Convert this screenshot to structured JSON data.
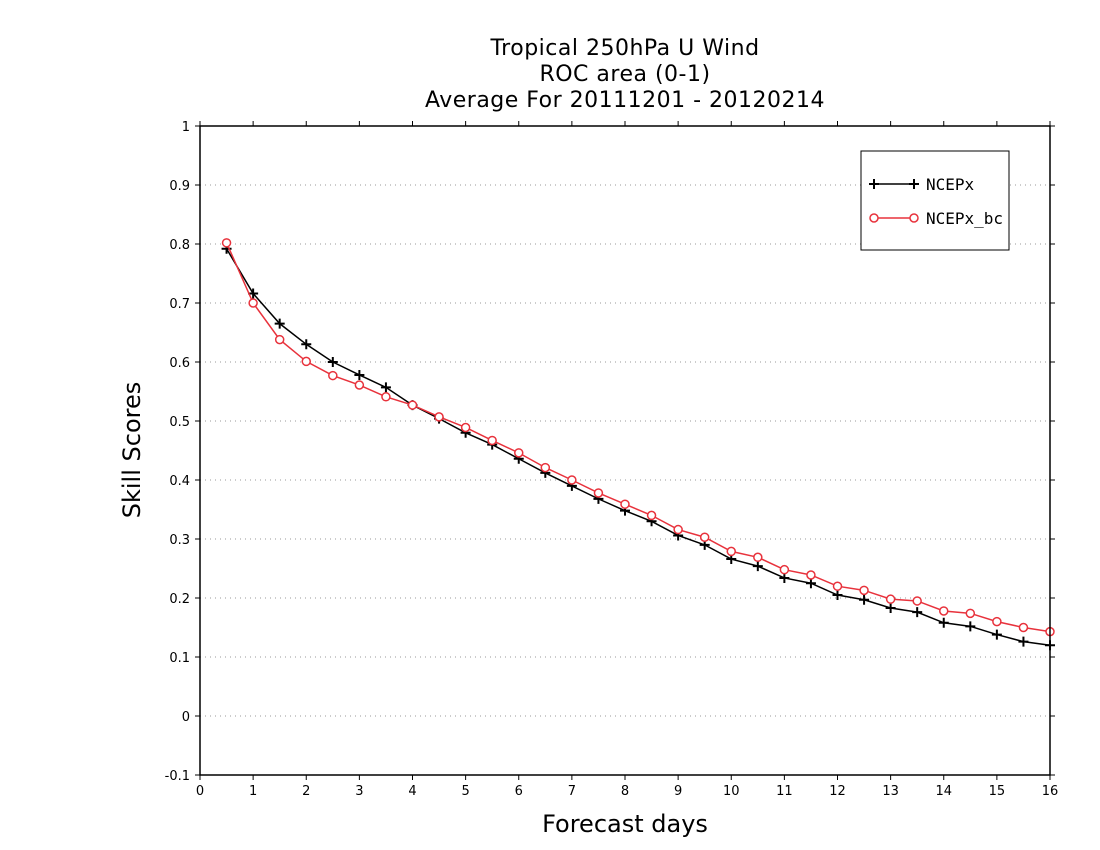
{
  "chart_data": {
    "type": "line",
    "title_lines": [
      "Tropical 250hPa U Wind",
      "ROC area (0-1)",
      "Average For 20111201 - 20120214"
    ],
    "xlabel": "Forecast days",
    "ylabel": "Skill Scores",
    "xlim": [
      0,
      16
    ],
    "ylim": [
      -0.1,
      1
    ],
    "x_ticks": [
      "0",
      "1",
      "2",
      "3",
      "4",
      "5",
      "6",
      "7",
      "8",
      "9",
      "10",
      "11",
      "12",
      "13",
      "14",
      "15",
      "16"
    ],
    "y_ticks": [
      "-0.1",
      "0",
      "0.1",
      "0.2",
      "0.3",
      "0.4",
      "0.5",
      "0.6",
      "0.7",
      "0.8",
      "0.9",
      "1"
    ],
    "grid": "horizontal dotted",
    "legend_position": "top-right",
    "x": [
      0.5,
      1,
      1.5,
      2,
      2.5,
      3,
      3.5,
      4,
      4.5,
      5,
      5.5,
      6,
      6.5,
      7,
      7.5,
      8,
      8.5,
      9,
      9.5,
      10,
      10.5,
      11,
      11.5,
      12,
      12.5,
      13,
      13.5,
      14,
      14.5,
      15,
      15.5,
      16
    ],
    "series": [
      {
        "name": "NCEPx",
        "color": "#000000",
        "marker": "plus",
        "values": [
          0.792,
          0.716,
          0.665,
          0.63,
          0.6,
          0.578,
          0.557,
          0.527,
          0.504,
          0.48,
          0.46,
          0.436,
          0.412,
          0.39,
          0.368,
          0.348,
          0.33,
          0.306,
          0.29,
          0.266,
          0.254,
          0.234,
          0.225,
          0.205,
          0.197,
          0.183,
          0.176,
          0.158,
          0.152,
          0.138,
          0.126,
          0.12
        ]
      },
      {
        "name": "NCEPx_bc",
        "color": "#e8323c",
        "marker": "circle",
        "values": [
          0.802,
          0.7,
          0.638,
          0.601,
          0.577,
          0.561,
          0.541,
          0.527,
          0.507,
          0.489,
          0.467,
          0.446,
          0.421,
          0.4,
          0.378,
          0.359,
          0.34,
          0.316,
          0.303,
          0.279,
          0.269,
          0.248,
          0.239,
          0.22,
          0.213,
          0.198,
          0.195,
          0.178,
          0.174,
          0.16,
          0.15,
          0.143
        ]
      }
    ]
  }
}
